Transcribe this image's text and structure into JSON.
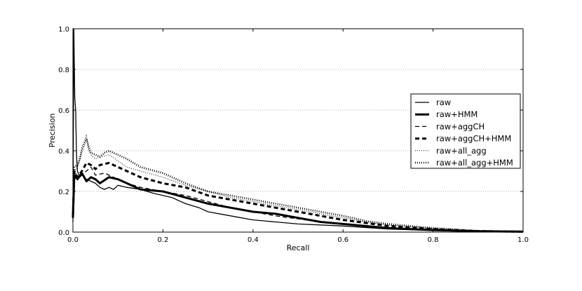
{
  "chart_data": {
    "type": "line",
    "title": "",
    "xlabel": "Recall",
    "ylabel": "Precision",
    "xlim": [
      0.0,
      1.0
    ],
    "ylim": [
      0.0,
      1.0
    ],
    "xticks": [
      "0.0",
      "0.2",
      "0.4",
      "0.6",
      "0.8",
      "1.0"
    ],
    "yticks": [
      "0.0",
      "0.2",
      "0.4",
      "0.6",
      "0.8",
      "1.0"
    ],
    "grid": "horizontal dotted",
    "legend_position": "right",
    "colors": {
      "lines": "#000000",
      "grid": "#999999",
      "background": "#ffffff"
    },
    "series": [
      {
        "name": "raw",
        "style": "solid-thin",
        "points": [
          [
            0.0,
            0.05
          ],
          [
            0.002,
            1.0
          ],
          [
            0.004,
            0.66
          ],
          [
            0.006,
            0.6
          ],
          [
            0.008,
            0.38
          ],
          [
            0.01,
            0.3
          ],
          [
            0.015,
            0.27
          ],
          [
            0.02,
            0.28
          ],
          [
            0.03,
            0.26
          ],
          [
            0.04,
            0.25
          ],
          [
            0.05,
            0.24
          ],
          [
            0.06,
            0.22
          ],
          [
            0.07,
            0.21
          ],
          [
            0.08,
            0.22
          ],
          [
            0.09,
            0.21
          ],
          [
            0.1,
            0.23
          ],
          [
            0.12,
            0.22
          ],
          [
            0.15,
            0.21
          ],
          [
            0.18,
            0.19
          ],
          [
            0.2,
            0.18
          ],
          [
            0.22,
            0.17
          ],
          [
            0.25,
            0.14
          ],
          [
            0.28,
            0.12
          ],
          [
            0.3,
            0.1
          ],
          [
            0.35,
            0.08
          ],
          [
            0.4,
            0.06
          ],
          [
            0.45,
            0.05
          ],
          [
            0.5,
            0.04
          ],
          [
            0.6,
            0.03
          ],
          [
            0.7,
            0.015
          ],
          [
            0.8,
            0.008
          ],
          [
            0.9,
            0.004
          ],
          [
            1.0,
            0.002
          ]
        ]
      },
      {
        "name": "raw+HMM",
        "style": "solid-thick",
        "points": [
          [
            0.0,
            0.07
          ],
          [
            0.003,
            0.28
          ],
          [
            0.01,
            0.26
          ],
          [
            0.02,
            0.29
          ],
          [
            0.03,
            0.25
          ],
          [
            0.04,
            0.27
          ],
          [
            0.05,
            0.26
          ],
          [
            0.06,
            0.24
          ],
          [
            0.08,
            0.27
          ],
          [
            0.1,
            0.26
          ],
          [
            0.12,
            0.24
          ],
          [
            0.15,
            0.21
          ],
          [
            0.2,
            0.2
          ],
          [
            0.25,
            0.17
          ],
          [
            0.3,
            0.14
          ],
          [
            0.35,
            0.12
          ],
          [
            0.4,
            0.1
          ],
          [
            0.45,
            0.09
          ],
          [
            0.5,
            0.07
          ],
          [
            0.55,
            0.05
          ],
          [
            0.6,
            0.04
          ],
          [
            0.7,
            0.02
          ],
          [
            0.8,
            0.01
          ],
          [
            0.9,
            0.004
          ],
          [
            1.0,
            0.002
          ]
        ]
      },
      {
        "name": "raw+aggCH",
        "style": "dashed-thin",
        "points": [
          [
            0.0,
            0.07
          ],
          [
            0.003,
            0.3
          ],
          [
            0.01,
            0.27
          ],
          [
            0.02,
            0.29
          ],
          [
            0.03,
            0.3
          ],
          [
            0.04,
            0.32
          ],
          [
            0.05,
            0.28
          ],
          [
            0.07,
            0.29
          ],
          [
            0.1,
            0.26
          ],
          [
            0.12,
            0.24
          ],
          [
            0.15,
            0.22
          ],
          [
            0.2,
            0.2
          ],
          [
            0.25,
            0.18
          ],
          [
            0.3,
            0.15
          ],
          [
            0.35,
            0.12
          ],
          [
            0.4,
            0.1
          ],
          [
            0.45,
            0.08
          ],
          [
            0.5,
            0.065
          ],
          [
            0.55,
            0.05
          ],
          [
            0.6,
            0.04
          ],
          [
            0.7,
            0.02
          ],
          [
            0.8,
            0.01
          ],
          [
            0.9,
            0.004
          ],
          [
            1.0,
            0.002
          ]
        ]
      },
      {
        "name": "raw+aggCH+HMM",
        "style": "dashed-thick",
        "points": [
          [
            0.0,
            0.08
          ],
          [
            0.003,
            0.3
          ],
          [
            0.01,
            0.27
          ],
          [
            0.02,
            0.3
          ],
          [
            0.03,
            0.34
          ],
          [
            0.04,
            0.33
          ],
          [
            0.05,
            0.31
          ],
          [
            0.06,
            0.33
          ],
          [
            0.08,
            0.34
          ],
          [
            0.1,
            0.32
          ],
          [
            0.12,
            0.3
          ],
          [
            0.15,
            0.27
          ],
          [
            0.2,
            0.24
          ],
          [
            0.25,
            0.22
          ],
          [
            0.3,
            0.18
          ],
          [
            0.35,
            0.16
          ],
          [
            0.4,
            0.14
          ],
          [
            0.45,
            0.12
          ],
          [
            0.5,
            0.1
          ],
          [
            0.55,
            0.08
          ],
          [
            0.6,
            0.06
          ],
          [
            0.65,
            0.045
          ],
          [
            0.7,
            0.03
          ],
          [
            0.8,
            0.015
          ],
          [
            0.9,
            0.005
          ],
          [
            1.0,
            0.002
          ]
        ]
      },
      {
        "name": "raw+all_agg",
        "style": "dotted-thin",
        "points": [
          [
            0.0,
            0.08
          ],
          [
            0.003,
            0.3
          ],
          [
            0.01,
            0.32
          ],
          [
            0.015,
            0.35
          ],
          [
            0.02,
            0.42
          ],
          [
            0.025,
            0.44
          ],
          [
            0.03,
            0.48
          ],
          [
            0.035,
            0.4
          ],
          [
            0.04,
            0.38
          ],
          [
            0.05,
            0.36
          ],
          [
            0.06,
            0.37
          ],
          [
            0.08,
            0.38
          ],
          [
            0.1,
            0.35
          ],
          [
            0.12,
            0.32
          ],
          [
            0.15,
            0.3
          ],
          [
            0.2,
            0.27
          ],
          [
            0.25,
            0.23
          ],
          [
            0.3,
            0.2
          ],
          [
            0.35,
            0.17
          ],
          [
            0.4,
            0.15
          ],
          [
            0.45,
            0.13
          ],
          [
            0.5,
            0.11
          ],
          [
            0.55,
            0.09
          ],
          [
            0.6,
            0.07
          ],
          [
            0.65,
            0.05
          ],
          [
            0.7,
            0.035
          ],
          [
            0.8,
            0.018
          ],
          [
            0.9,
            0.006
          ],
          [
            1.0,
            0.002
          ]
        ]
      },
      {
        "name": "raw+all_agg+HMM",
        "style": "dotted-thick",
        "points": [
          [
            0.0,
            0.1
          ],
          [
            0.003,
            0.32
          ],
          [
            0.01,
            0.33
          ],
          [
            0.015,
            0.36
          ],
          [
            0.02,
            0.4
          ],
          [
            0.025,
            0.43
          ],
          [
            0.03,
            0.46
          ],
          [
            0.035,
            0.42
          ],
          [
            0.04,
            0.39
          ],
          [
            0.05,
            0.38
          ],
          [
            0.06,
            0.37
          ],
          [
            0.07,
            0.39
          ],
          [
            0.08,
            0.4
          ],
          [
            0.1,
            0.38
          ],
          [
            0.12,
            0.36
          ],
          [
            0.15,
            0.32
          ],
          [
            0.2,
            0.29
          ],
          [
            0.25,
            0.24
          ],
          [
            0.3,
            0.2
          ],
          [
            0.35,
            0.18
          ],
          [
            0.4,
            0.16
          ],
          [
            0.45,
            0.14
          ],
          [
            0.5,
            0.12
          ],
          [
            0.55,
            0.1
          ],
          [
            0.6,
            0.08
          ],
          [
            0.65,
            0.055
          ],
          [
            0.7,
            0.04
          ],
          [
            0.8,
            0.02
          ],
          [
            0.9,
            0.006
          ],
          [
            1.0,
            0.002
          ]
        ]
      }
    ]
  }
}
